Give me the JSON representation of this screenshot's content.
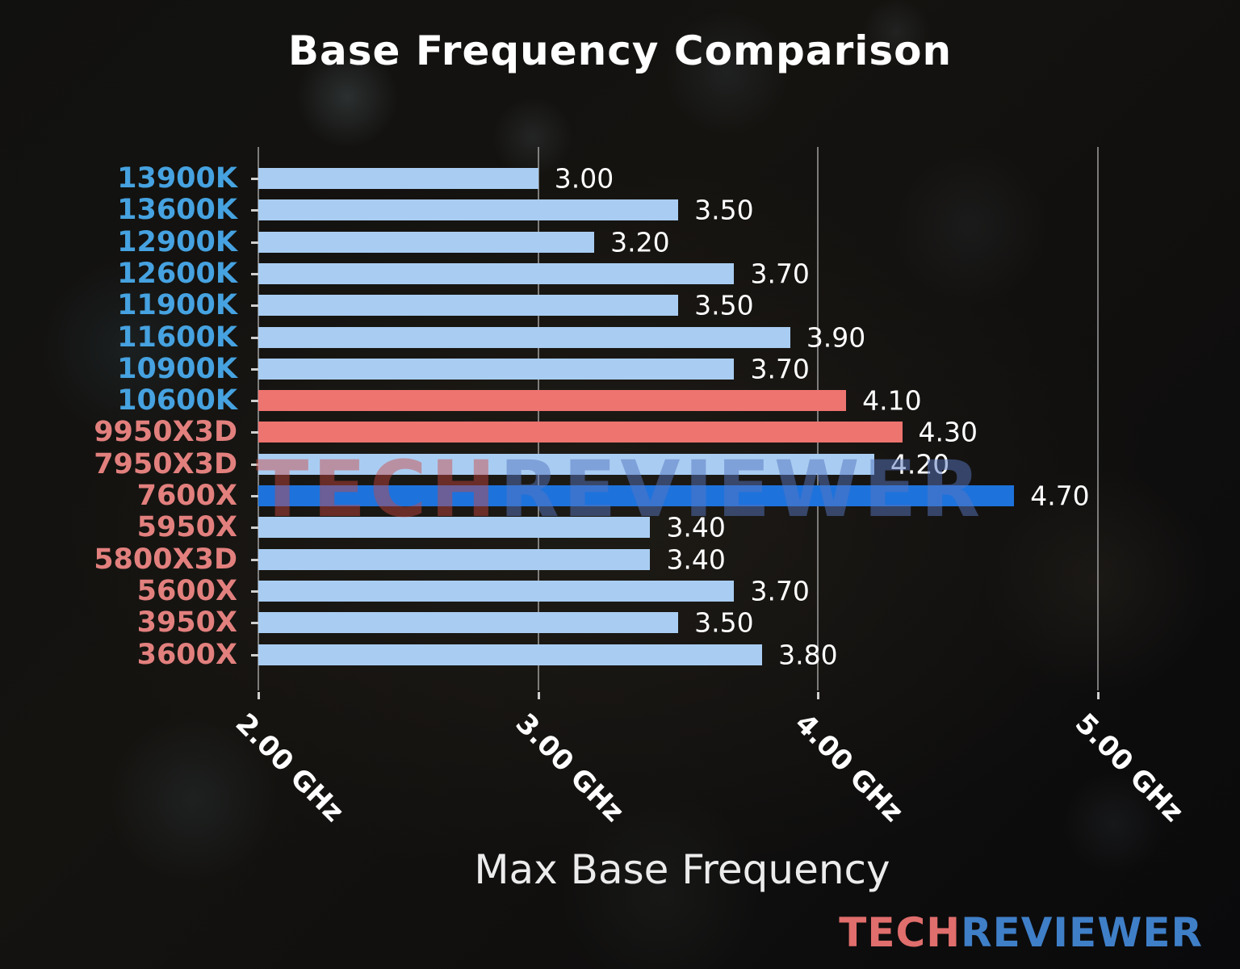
{
  "title": "Base Frequency Comparison",
  "xlabel": "Max Base Frequency",
  "watermark": {
    "part1": "TECH",
    "part2": "REVIEWER"
  },
  "logo": {
    "part1": "TECH",
    "part2": "REVIEWER"
  },
  "chart_data": {
    "type": "bar",
    "orientation": "horizontal",
    "title": "Base Frequency Comparison",
    "xlabel": "Max Base Frequency",
    "xlim": [
      2.0,
      5.38
    ],
    "grid": true,
    "x_ticks": [
      {
        "value": 2.0,
        "label": "2.00 GHz"
      },
      {
        "value": 3.0,
        "label": "3.00 GHz"
      },
      {
        "value": 4.0,
        "label": "4.00 GHz"
      },
      {
        "value": 5.0,
        "label": "5.00 GHz"
      }
    ],
    "colors": {
      "light_blue_bar": "#a9cdf2",
      "salmon_bar": "#ee7470",
      "highlight_blue_bar": "#1e72dc",
      "intel_label": "#46a2e0",
      "amd_label": "#e2807e",
      "value_text": "#ffffff",
      "gridline": "#d4d4d4"
    },
    "rows": [
      {
        "label": "13900K",
        "value": 3.0,
        "value_label": "3.00",
        "bar_color": "#a9cdf2",
        "label_color": "#46a2e0"
      },
      {
        "label": "13600K",
        "value": 3.5,
        "value_label": "3.50",
        "bar_color": "#a9cdf2",
        "label_color": "#46a2e0"
      },
      {
        "label": "12900K",
        "value": 3.2,
        "value_label": "3.20",
        "bar_color": "#a9cdf2",
        "label_color": "#46a2e0"
      },
      {
        "label": "12600K",
        "value": 3.7,
        "value_label": "3.70",
        "bar_color": "#a9cdf2",
        "label_color": "#46a2e0"
      },
      {
        "label": "11900K",
        "value": 3.5,
        "value_label": "3.50",
        "bar_color": "#a9cdf2",
        "label_color": "#46a2e0"
      },
      {
        "label": "11600K",
        "value": 3.9,
        "value_label": "3.90",
        "bar_color": "#a9cdf2",
        "label_color": "#46a2e0"
      },
      {
        "label": "10900K",
        "value": 3.7,
        "value_label": "3.70",
        "bar_color": "#a9cdf2",
        "label_color": "#46a2e0"
      },
      {
        "label": "10600K",
        "value": 4.1,
        "value_label": "4.10",
        "bar_color": "#ee7470",
        "label_color": "#46a2e0"
      },
      {
        "label": "9950X3D",
        "value": 4.3,
        "value_label": "4.30",
        "bar_color": "#ee7470",
        "label_color": "#e2807e"
      },
      {
        "label": "7950X3D",
        "value": 4.2,
        "value_label": "4.20",
        "bar_color": "#a9cdf2",
        "label_color": "#e2807e"
      },
      {
        "label": "7600X",
        "value": 4.7,
        "value_label": "4.70",
        "bar_color": "#1e72dc",
        "label_color": "#e2807e"
      },
      {
        "label": "5950X",
        "value": 3.4,
        "value_label": "3.40",
        "bar_color": "#a9cdf2",
        "label_color": "#e2807e"
      },
      {
        "label": "5800X3D",
        "value": 3.4,
        "value_label": "3.40",
        "bar_color": "#a9cdf2",
        "label_color": "#e2807e"
      },
      {
        "label": "5600X",
        "value": 3.7,
        "value_label": "3.70",
        "bar_color": "#a9cdf2",
        "label_color": "#e2807e"
      },
      {
        "label": "3950X",
        "value": 3.5,
        "value_label": "3.50",
        "bar_color": "#a9cdf2",
        "label_color": "#e2807e"
      },
      {
        "label": "3600X",
        "value": 3.8,
        "value_label": "3.80",
        "bar_color": "#a9cdf2",
        "label_color": "#e2807e"
      }
    ]
  }
}
